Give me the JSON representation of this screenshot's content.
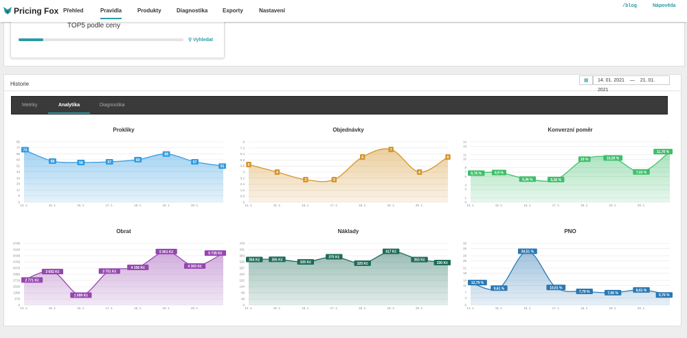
{
  "nav": {
    "brand": "Pricing Fox",
    "items": [
      "Přehled",
      "Pravidla",
      "Produkty",
      "Diagnostika",
      "Exporty",
      "Nastavení"
    ],
    "blog": "/blog",
    "help": "Nápověda"
  },
  "card": {
    "caption": "TOP5 podle ceny",
    "search": "Vyhledat"
  },
  "history": {
    "title": "Historie",
    "date_from": "14. 01. 2021",
    "date_sep": "—",
    "date_to": "21. 01. 2021",
    "tabs": [
      "Metriky",
      "Analytika",
      "Diagnostika"
    ]
  },
  "chart_data": [
    {
      "type": "line",
      "title": "Prokliky",
      "color": "#2f9ae0",
      "categories": [
        "14. 1.",
        "15. 1.",
        "16. 1.",
        "17. 1.",
        "18. 1.",
        "19. 1.",
        "20. 1.",
        null
      ],
      "values": [
        74,
        58,
        56,
        57,
        60,
        68,
        57,
        51
      ],
      "ylim": [
        0,
        85
      ],
      "yticks": [
        0,
        9,
        17,
        26,
        34,
        43,
        51,
        60,
        68,
        77,
        85
      ],
      "grid": true
    },
    {
      "type": "line",
      "title": "Objednávky",
      "color": "#d4952a",
      "categories": [
        "14. 1.",
        "15. 1.",
        "16. 1.",
        "17. 1.",
        "18. 1.",
        "19. 1.",
        "20. 1.",
        null
      ],
      "values": [
        5,
        4,
        3,
        3,
        6,
        7,
        4,
        6
      ],
      "ylim": [
        0,
        8
      ],
      "yticks": [
        0,
        0.8,
        1.6,
        2.4,
        3.2,
        4,
        4.8,
        5.6,
        6.4,
        7.2,
        8
      ],
      "grid": true
    },
    {
      "type": "line",
      "title": "Konverzní poměr",
      "color": "#3cbf6a",
      "categories": [
        "14. 1.",
        "15. 1.",
        "16. 1.",
        "17. 1.",
        "18. 1.",
        "19. 1.",
        "20. 1.",
        null
      ],
      "values": [
        6.76,
        6.9,
        5.36,
        5.26,
        10,
        10.29,
        7.03,
        11.76
      ],
      "value_labels": [
        "6,76 %",
        "6,9 %",
        "5,36 %",
        "5,26 %",
        "10 %",
        "10,29 %",
        "7,03 %",
        "11,76 %"
      ],
      "ylim": [
        0,
        14
      ],
      "yticks": [
        0,
        1,
        3,
        4,
        6,
        7,
        8,
        10,
        11,
        13,
        14
      ],
      "grid": true
    },
    {
      "type": "line",
      "title": "Obrat",
      "color": "#9646b0",
      "categories": [
        "14. 1.",
        "15. 1.",
        "16. 1.",
        "17. 1.",
        "18. 1.",
        "19. 1.",
        "20. 1.",
        null
      ],
      "values": [
        2771,
        3692,
        1099,
        3751,
        4156,
        5901,
        4303,
        5735
      ],
      "value_labels": [
        "2 771 Kč",
        "3 692 Kč",
        "1 099 Kč",
        "3 751 Kč",
        "4 156 Kč",
        "5 901 Kč",
        "4 303 Kč",
        "5 735 Kč"
      ],
      "ylim": [
        0,
        6798
      ],
      "yticks": [
        0,
        679,
        1359,
        2039,
        2719,
        3399,
        4079,
        4759,
        5438,
        6118,
        6798
      ],
      "grid": true
    },
    {
      "type": "line",
      "title": "Náklady",
      "color": "#1d6b58",
      "categories": [
        "14. 1.",
        "15. 1.",
        "16. 1.",
        "17. 1.",
        "18. 1.",
        "19. 1.",
        "20. 1.",
        null
      ],
      "values": [
        354,
        355,
        335,
        375,
        325,
        417,
        353,
        330
      ],
      "value_labels": [
        "354 Kč",
        "355 Kč",
        "335 Kč",
        "375 Kč",
        "325 Kč",
        "417 Kč",
        "353 Kč",
        "330 Kč"
      ],
      "ylim": [
        0,
        479
      ],
      "yticks": [
        0,
        48,
        96,
        144,
        192,
        240,
        287,
        335,
        383,
        431,
        479
      ],
      "grid": true
    },
    {
      "type": "line",
      "title": "PNO",
      "color": "#2a78b3",
      "categories": [
        "14. 1.",
        "15. 1.",
        "16. 1.",
        "17. 1.",
        "18. 1.",
        "19. 1.",
        "20. 1.",
        null
      ],
      "values": [
        12.79,
        9.61,
        30.51,
        10.01,
        7.79,
        7.06,
        8.61,
        5.76
      ],
      "value_labels": [
        "12,79 %",
        "9,61 %",
        "30,51 %",
        "10,01 %",
        "7,79 %",
        "7,06 %",
        "8,61 %",
        "5,76 %"
      ],
      "ylim": [
        0,
        35
      ],
      "yticks": [
        0,
        4,
        7,
        11,
        14,
        18,
        21,
        25,
        28,
        32,
        35
      ],
      "grid": true
    }
  ]
}
